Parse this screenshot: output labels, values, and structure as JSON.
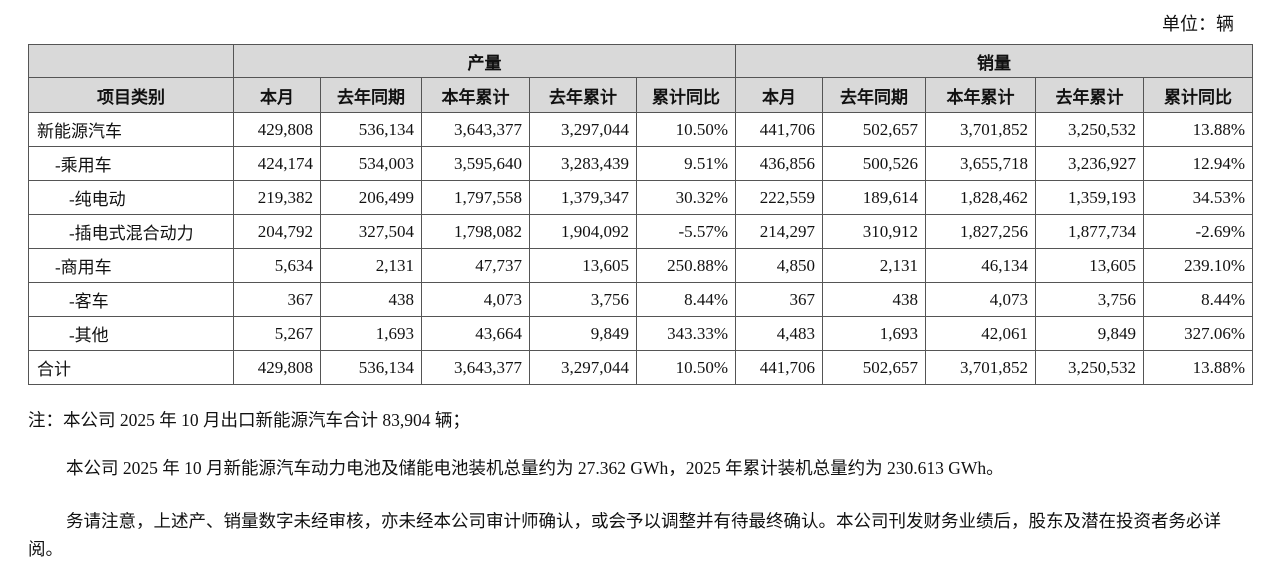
{
  "unit": "单位：辆",
  "table": {
    "group_headers": {
      "corner": "项目类别",
      "production": "产量",
      "sales": "销量"
    },
    "column_headers": [
      "本月",
      "去年同期",
      "本年累计",
      "去年累计",
      "累计同比",
      "本月",
      "去年同期",
      "本年累计",
      "去年累计",
      "累计同比"
    ],
    "rows": [
      [
        "新能源汽车",
        "429,808",
        "536,134",
        "3,643,377",
        "3,297,044",
        "10.50%",
        "441,706",
        "502,657",
        "3,701,852",
        "3,250,532",
        "13.88%"
      ],
      [
        "-乘用车",
        "424,174",
        "534,003",
        "3,595,640",
        "3,283,439",
        "9.51%",
        "436,856",
        "500,526",
        "3,655,718",
        "3,236,927",
        "12.94%"
      ],
      [
        "-纯电动",
        "219,382",
        "206,499",
        "1,797,558",
        "1,379,347",
        "30.32%",
        "222,559",
        "189,614",
        "1,828,462",
        "1,359,193",
        "34.53%"
      ],
      [
        "-插电式混合动力",
        "204,792",
        "327,504",
        "1,798,082",
        "1,904,092",
        "-5.57%",
        "214,297",
        "310,912",
        "1,827,256",
        "1,877,734",
        "-2.69%"
      ],
      [
        "-商用车",
        "5,634",
        "2,131",
        "47,737",
        "13,605",
        "250.88%",
        "4,850",
        "2,131",
        "46,134",
        "13,605",
        "239.10%"
      ],
      [
        "-客车",
        "367",
        "438",
        "4,073",
        "3,756",
        "8.44%",
        "367",
        "438",
        "4,073",
        "3,756",
        "8.44%"
      ],
      [
        "-其他",
        "5,267",
        "1,693",
        "43,664",
        "9,849",
        "343.33%",
        "4,483",
        "1,693",
        "42,061",
        "9,849",
        "327.06%"
      ],
      [
        "合计",
        "429,808",
        "536,134",
        "3,643,377",
        "3,297,044",
        "10.50%",
        "441,706",
        "502,657",
        "3,701,852",
        "3,250,532",
        "13.88%"
      ]
    ]
  },
  "notes": [
    "注：本公司 2025 年 10 月出口新能源汽车合计 83,904 辆；",
    "本公司 2025 年 10 月新能源汽车动力电池及储能电池装机总量约为 27.362 GWh，2025 年累计装机总量约为 230.613 GWh。",
    "务请注意，上述产、销量数字未经审核，亦未经本公司审计师确认，或会予以调整并有待最终确认。本公司刊发财务业绩后，股东及潜在投资者务必详阅。"
  ]
}
